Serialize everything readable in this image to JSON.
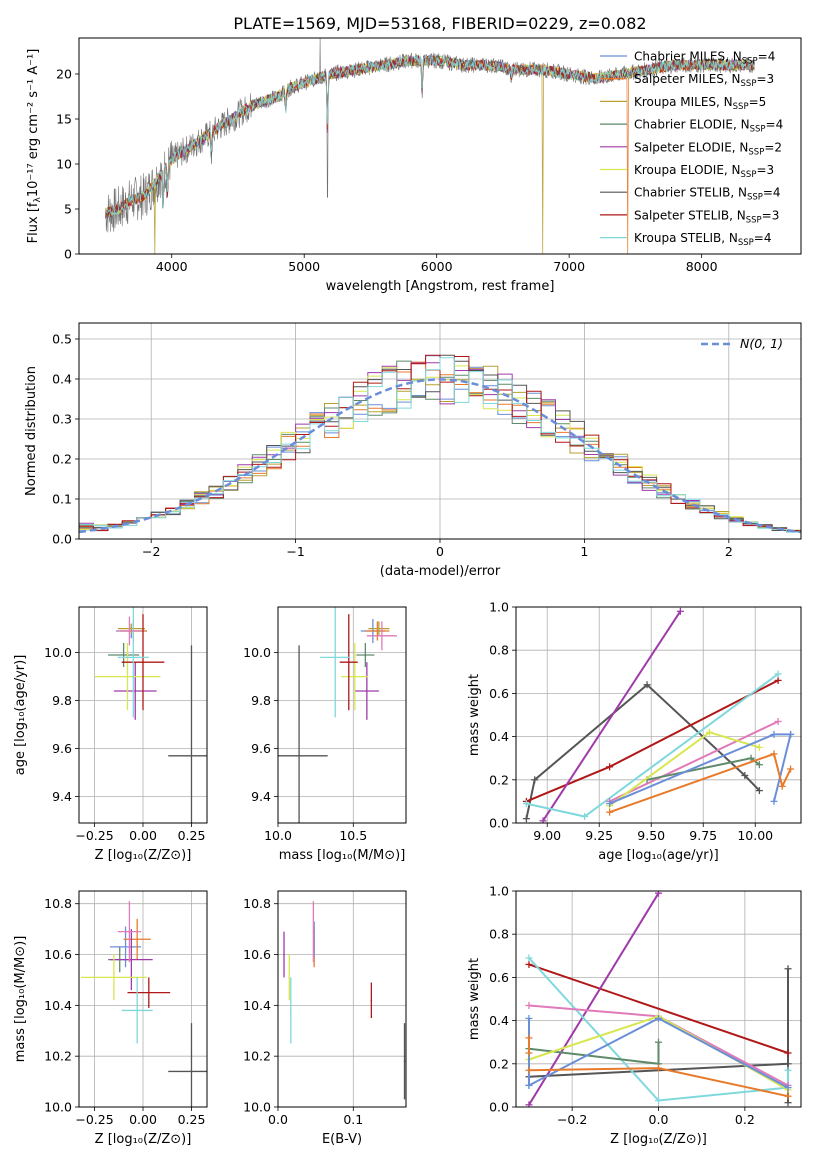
{
  "figure": {
    "title": "PLATE=1569, MJD=53168, FIBERID=0229, z=0.082"
  },
  "series_styles": [
    {
      "name": "Chabrier MILES",
      "nssp": "4",
      "color": "#6a8fd9"
    },
    {
      "name": "Salpeter MILES",
      "nssp": "3",
      "color": "#e87a2c"
    },
    {
      "name": "Kroupa MILES",
      "nssp": "5",
      "color": "#b8a032"
    },
    {
      "name": "Chabrier ELODIE",
      "nssp": "4",
      "color": "#5f8a6a"
    },
    {
      "name": "Salpeter ELODIE",
      "nssp": "2",
      "color": "#a03aaa"
    },
    {
      "name": "Kroupa ELODIE",
      "nssp": "3",
      "color": "#d8e650"
    },
    {
      "name": "Chabrier STELIB",
      "nssp": "4",
      "color": "#555555"
    },
    {
      "name": "Salpeter STELIB",
      "nssp": "3",
      "color": "#b01818"
    },
    {
      "name": "Kroupa STELIB",
      "nssp": "4",
      "color": "#7fd8dc"
    }
  ],
  "chart_data": [
    {
      "id": "spectrum",
      "type": "line",
      "xlabel": "wavelength [Angstrom, rest frame]",
      "ylabel_main": "Flux [f",
      "ylabel_units": "10⁻¹⁷ erg cm⁻² s⁻¹ A⁻¹]",
      "xlim": [
        3300,
        8750
      ],
      "ylim": [
        0,
        24
      ],
      "xticks": [
        "4000",
        "5000",
        "6000",
        "7000",
        "8000"
      ],
      "yticks": [
        "0",
        "5",
        "10",
        "15",
        "20"
      ],
      "legend_position": "top-right",
      "continuum": {
        "x": [
          3500,
          3600,
          3700,
          3800,
          3900,
          4000,
          4100,
          4200,
          4300,
          4400,
          4500,
          4600,
          4700,
          4800,
          4900,
          5000,
          5200,
          5400,
          5600,
          5800,
          6000,
          6200,
          6400,
          6600,
          6800,
          7000,
          7200,
          7400,
          7600,
          7800,
          8000,
          8200,
          8400
        ],
        "y": [
          4.5,
          5.0,
          6.0,
          6.5,
          8.5,
          10.5,
          11.5,
          12.5,
          13.5,
          14.5,
          15.5,
          16.5,
          17.0,
          17.5,
          18.5,
          19.0,
          20.0,
          20.5,
          21.0,
          21.5,
          21.5,
          21.0,
          21.0,
          20.5,
          20.5,
          20.0,
          19.5,
          20.0,
          20.5,
          21.0,
          21.0,
          21.0,
          21.0
        ]
      },
      "absorption_features": [
        {
          "x": 5175,
          "depth": 6.0
        },
        {
          "x": 5890,
          "depth": 3.5
        },
        {
          "x": 4861,
          "depth": 2.0
        },
        {
          "x": 4300,
          "depth": 2.5
        },
        {
          "x": 3934,
          "depth": 4.0
        },
        {
          "x": 3968,
          "depth": 3.0
        },
        {
          "x": 6563,
          "depth": 1.0
        }
      ],
      "model_dips": [
        {
          "x": 3870,
          "color": "#b8a032"
        },
        {
          "x": 6800,
          "color": "#b8a032"
        },
        {
          "x": 7440,
          "color": "#e87a2c"
        }
      ]
    },
    {
      "id": "residuals",
      "type": "histogram",
      "xlabel": "(data-model)/error",
      "ylabel": "Normed distribution",
      "xlim": [
        -2.5,
        2.5
      ],
      "ylim": [
        0,
        0.54
      ],
      "xticks": [
        "−2",
        "−1",
        "0",
        "1",
        "2"
      ],
      "yticks": [
        "0.0",
        "0.1",
        "0.2",
        "0.3",
        "0.4",
        "0.5"
      ],
      "bin_width": 0.1,
      "legend_label": "N(0, 1)",
      "legend_position": "top-right",
      "reference_curve": "standard normal"
    },
    {
      "id": "age-vs-Z",
      "type": "scatter",
      "xlabel": "Z [log₁₀(Z/Z⊙)]",
      "ylabel": "age  [log₁₀(age/yr)]",
      "xlim": [
        -0.33,
        0.33
      ],
      "ylim": [
        9.29,
        10.19
      ],
      "xticks": [
        "−0.25",
        "0.00",
        "0.25"
      ],
      "yticks": [
        "9.4",
        "9.6",
        "9.8",
        "10.0"
      ],
      "points": [
        {
          "x": -0.06,
          "y": 10.09,
          "xerr": 0.08,
          "yerr": 0.03,
          "color": "#6a8fd9"
        },
        {
          "x": -0.05,
          "y": 10.09,
          "xerr": 0.07,
          "yerr": 0.04,
          "color": "#e87a2c"
        },
        {
          "x": -0.06,
          "y": 10.1,
          "xerr": 0.07,
          "yerr": 0.02,
          "color": "#b8a032"
        },
        {
          "x": -0.1,
          "y": 9.99,
          "xerr": 0.08,
          "yerr": 0.05,
          "color": "#5f8a6a"
        },
        {
          "x": -0.04,
          "y": 9.84,
          "xerr": 0.11,
          "yerr": 0.12,
          "color": "#a03aaa"
        },
        {
          "x": -0.08,
          "y": 9.9,
          "xerr": 0.17,
          "yerr": 0.14,
          "color": "#d8e650"
        },
        {
          "x": 0.25,
          "y": 9.57,
          "xerr": 0.12,
          "yerr": 0.46,
          "color": "#555555"
        },
        {
          "x": 0.0,
          "y": 9.96,
          "xerr": 0.11,
          "yerr": 0.2,
          "color": "#b01818"
        },
        {
          "x": -0.05,
          "y": 9.98,
          "xerr": 0.08,
          "yerr": 0.25,
          "color": "#7fd8dc"
        },
        {
          "x": -0.07,
          "y": 10.09,
          "xerr": 0.06,
          "yerr": 0.06,
          "color": "#e07ab8"
        }
      ]
    },
    {
      "id": "age-vs-mass",
      "type": "scatter",
      "xlabel": "mass [log₁₀(M/M⊙)]",
      "ylabel": "",
      "xlim": [
        10.0,
        10.85
      ],
      "ylim": [
        9.29,
        10.19
      ],
      "xticks": [
        "10.0",
        "10.5"
      ],
      "yticks": [
        "9.4",
        "9.6",
        "9.8",
        "10.0"
      ],
      "points": [
        {
          "x": 10.63,
          "y": 10.09,
          "xerr": 0.08,
          "yerr": 0.05,
          "color": "#6a8fd9"
        },
        {
          "x": 10.66,
          "y": 10.09,
          "xerr": 0.08,
          "yerr": 0.04,
          "color": "#e87a2c"
        },
        {
          "x": 10.67,
          "y": 10.1,
          "xerr": 0.07,
          "yerr": 0.03,
          "color": "#b8a032"
        },
        {
          "x": 10.58,
          "y": 9.99,
          "xerr": 0.06,
          "yerr": 0.05,
          "color": "#5f8a6a"
        },
        {
          "x": 10.59,
          "y": 9.84,
          "xerr": 0.08,
          "yerr": 0.12,
          "color": "#a03aaa"
        },
        {
          "x": 10.51,
          "y": 9.9,
          "xerr": 0.09,
          "yerr": 0.14,
          "color": "#d8e650"
        },
        {
          "x": 10.14,
          "y": 9.57,
          "xerr": 0.19,
          "yerr": 0.46,
          "color": "#555555"
        },
        {
          "x": 10.47,
          "y": 9.96,
          "xerr": 0.06,
          "yerr": 0.2,
          "color": "#b01818"
        },
        {
          "x": 10.38,
          "y": 9.98,
          "xerr": 0.1,
          "yerr": 0.25,
          "color": "#7fd8dc"
        },
        {
          "x": 10.69,
          "y": 10.07,
          "xerr": 0.1,
          "yerr": 0.06,
          "color": "#e07ab8"
        }
      ]
    },
    {
      "id": "weight-vs-age",
      "type": "line",
      "xlabel": "age  [log₁₀(age/yr)]",
      "ylabel": "mass weight",
      "xlim": [
        8.85,
        10.22
      ],
      "ylim": [
        0,
        1.0
      ],
      "xticks": [
        "9.00",
        "9.25",
        "9.50",
        "9.75",
        "10.00"
      ],
      "yticks": [
        "0.0",
        "0.2",
        "0.4",
        "0.6",
        "0.8",
        "1.0"
      ],
      "series": [
        {
          "color": "#555555",
          "x": [
            8.9,
            8.94,
            9.48,
            9.95,
            10.02
          ],
          "y": [
            0.02,
            0.2,
            0.64,
            0.22,
            0.15
          ]
        },
        {
          "color": "#b01818",
          "x": [
            8.9,
            9.3,
            10.11
          ],
          "y": [
            0.1,
            0.26,
            0.66
          ]
        },
        {
          "color": "#a03aaa",
          "x": [
            8.98,
            9.64
          ],
          "y": [
            0.01,
            0.98
          ]
        },
        {
          "color": "#7fd8dc",
          "x": [
            8.9,
            9.18,
            10.11
          ],
          "y": [
            0.09,
            0.03,
            0.69
          ]
        },
        {
          "color": "#e07ab8",
          "x": [
            9.3,
            10.11
          ],
          "y": [
            0.1,
            0.47
          ]
        },
        {
          "color": "#5f8a6a",
          "x": [
            9.48,
            9.98,
            10.02
          ],
          "y": [
            0.2,
            0.3,
            0.27
          ]
        },
        {
          "color": "#d8e650",
          "x": [
            9.3,
            9.78,
            10.02
          ],
          "y": [
            0.08,
            0.42,
            0.35
          ]
        },
        {
          "color": "#6a8fd9",
          "x": [
            9.3,
            10.09,
            10.17
          ],
          "y": [
            0.09,
            0.41,
            0.41
          ]
        },
        {
          "color": "#6a8fd9",
          "x": [
            10.09,
            10.17
          ],
          "y": [
            0.1,
            0.41
          ]
        },
        {
          "color": "#e87a2c",
          "x": [
            9.3,
            10.09,
            10.13,
            10.17
          ],
          "y": [
            0.05,
            0.32,
            0.17,
            0.25
          ]
        }
      ]
    },
    {
      "id": "mass-vs-Z",
      "type": "scatter",
      "xlabel": "Z [log₁₀(Z/Z⊙)]",
      "ylabel": "mass [log₁₀(M/M⊙)]",
      "xlim": [
        -0.33,
        0.33
      ],
      "ylim": [
        10.0,
        10.85
      ],
      "xticks": [
        "−0.25",
        "0.00",
        "0.25"
      ],
      "yticks": [
        "10.0",
        "10.2",
        "10.4",
        "10.6",
        "10.8"
      ],
      "points": [
        {
          "x": -0.09,
          "y": 10.63,
          "xerr": 0.08,
          "yerr": 0.08,
          "color": "#6a8fd9"
        },
        {
          "x": -0.03,
          "y": 10.66,
          "xerr": 0.07,
          "yerr": 0.08,
          "color": "#e87a2c"
        },
        {
          "x": -0.12,
          "y": 10.58,
          "xerr": 0.06,
          "yerr": 0.05,
          "color": "#5f8a6a"
        },
        {
          "x": -0.06,
          "y": 10.58,
          "xerr": 0.11,
          "yerr": 0.12,
          "color": "#a03aaa"
        },
        {
          "x": -0.15,
          "y": 10.51,
          "xerr": 0.17,
          "yerr": 0.09,
          "color": "#d8e650"
        },
        {
          "x": 0.25,
          "y": 10.14,
          "xerr": 0.12,
          "yerr": 0.19,
          "color": "#555555"
        },
        {
          "x": 0.03,
          "y": 10.45,
          "xerr": 0.11,
          "yerr": 0.06,
          "color": "#b01818"
        },
        {
          "x": -0.03,
          "y": 10.38,
          "xerr": 0.08,
          "yerr": 0.13,
          "color": "#7fd8dc"
        },
        {
          "x": -0.07,
          "y": 10.69,
          "xerr": 0.06,
          "yerr": 0.12,
          "color": "#e07ab8"
        }
      ]
    },
    {
      "id": "mass-vs-ebv",
      "type": "scatter",
      "xlabel": "E(B-V)",
      "ylabel": "",
      "xlim": [
        0.0,
        0.17
      ],
      "ylim": [
        10.0,
        10.85
      ],
      "xticks": [
        "0.0",
        "0.1"
      ],
      "yticks": [
        "10.0",
        "10.2",
        "10.4",
        "10.6",
        "10.8"
      ],
      "points": [
        {
          "x": 0.008,
          "y": 10.6,
          "xerr": 0,
          "yerr": 0.09,
          "color": "#a03aaa"
        },
        {
          "x": 0.015,
          "y": 10.51,
          "xerr": 0,
          "yerr": 0.09,
          "color": "#d8e650"
        },
        {
          "x": 0.017,
          "y": 10.38,
          "xerr": 0,
          "yerr": 0.13,
          "color": "#7fd8dc"
        },
        {
          "x": 0.048,
          "y": 10.63,
          "xerr": 0,
          "yerr": 0.08,
          "color": "#e87a2c"
        },
        {
          "x": 0.048,
          "y": 10.66,
          "xerr": 0,
          "yerr": 0.07,
          "color": "#6a8fd9"
        },
        {
          "x": 0.047,
          "y": 10.69,
          "xerr": 0,
          "yerr": 0.12,
          "color": "#e07ab8"
        },
        {
          "x": 0.124,
          "y": 10.42,
          "xerr": 0,
          "yerr": 0.07,
          "color": "#b01818"
        },
        {
          "x": 0.168,
          "y": 10.18,
          "xerr": 0,
          "yerr": 0.15,
          "color": "#555555"
        }
      ]
    },
    {
      "id": "weight-vs-Z",
      "type": "line",
      "xlabel": "Z [log₁₀(Z/Z⊙)]",
      "ylabel": "mass weight",
      "xlim": [
        -0.33,
        0.33
      ],
      "ylim": [
        0,
        1.0
      ],
      "xticks": [
        "−0.2",
        "0.0",
        "0.2"
      ],
      "yticks": [
        "0.0",
        "0.2",
        "0.4",
        "0.6",
        "0.8",
        "1.0"
      ],
      "series": [
        {
          "color": "#555555",
          "x": [
            -0.3,
            0.3,
            0.3,
            0.3
          ],
          "y": [
            0.14,
            0.2,
            0.64,
            0.02
          ]
        },
        {
          "color": "#b01818",
          "x": [
            -0.3,
            0.3
          ],
          "y": [
            0.66,
            0.25
          ]
        },
        {
          "color": "#a03aaa",
          "x": [
            -0.3,
            0.0
          ],
          "y": [
            0.01,
            0.99
          ]
        },
        {
          "color": "#7fd8dc",
          "x": [
            -0.3,
            0.0,
            0.3,
            0.3
          ],
          "y": [
            0.69,
            0.03,
            0.09,
            0.17
          ]
        },
        {
          "color": "#e07ab8",
          "x": [
            -0.3,
            0.0,
            0.3
          ],
          "y": [
            0.47,
            0.42,
            0.1
          ]
        },
        {
          "color": "#5f8a6a",
          "x": [
            -0.3,
            0.0,
            0.0
          ],
          "y": [
            0.27,
            0.2,
            0.3
          ]
        },
        {
          "color": "#d8e650",
          "x": [
            -0.3,
            0.0,
            0.3
          ],
          "y": [
            0.22,
            0.42,
            0.08
          ]
        },
        {
          "color": "#6a8fd9",
          "x": [
            -0.3,
            0.0,
            0.3
          ],
          "y": [
            0.1,
            0.41,
            0.09
          ]
        },
        {
          "color": "#6a8fd9",
          "x": [
            -0.3,
            -0.3
          ],
          "y": [
            0.41,
            0.1
          ]
        },
        {
          "color": "#e87a2c",
          "x": [
            -0.3,
            0.0,
            0.3
          ],
          "y": [
            0.17,
            0.18,
            0.05
          ]
        },
        {
          "color": "#e87a2c",
          "x": [
            -0.3,
            -0.3
          ],
          "y": [
            0.32,
            0.25
          ]
        }
      ]
    }
  ]
}
